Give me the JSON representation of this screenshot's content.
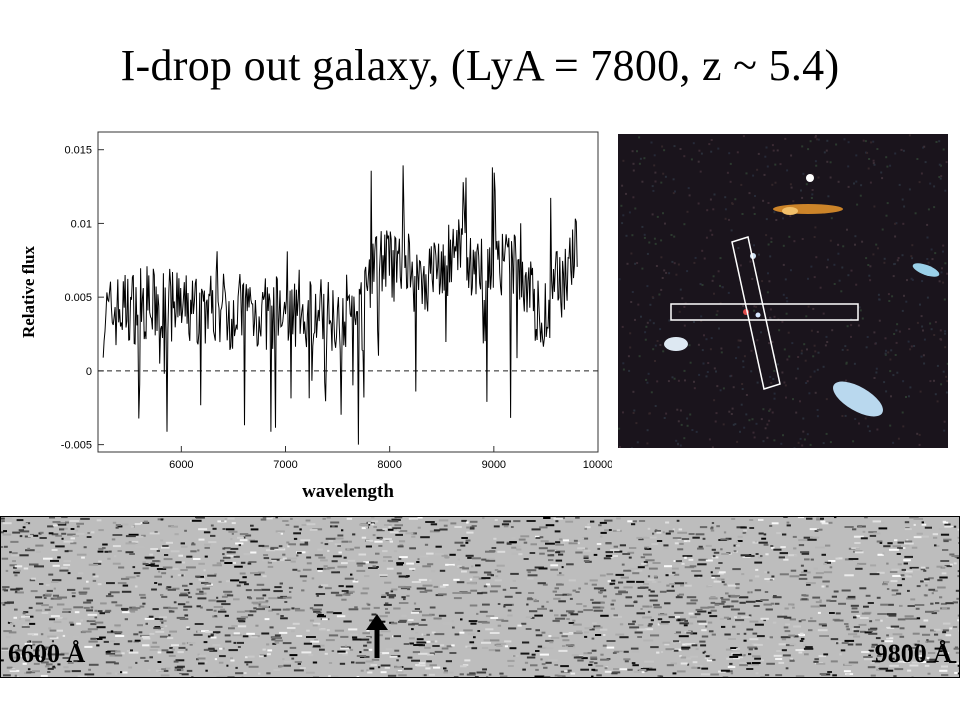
{
  "slide": {
    "title": "I-drop out galaxy, (LyA = 7800, z ~ 5.4)"
  },
  "chart_data": [
    {
      "type": "line",
      "title": "",
      "xlabel": "wavelength",
      "ylabel": "Relative flux",
      "xlim": [
        5200,
        10000
      ],
      "ylim": [
        -0.0055,
        0.0162
      ],
      "x_ticks": [
        "6000",
        "7000",
        "8000",
        "9000",
        "10000"
      ],
      "y_ticks": [
        "-0.005",
        "0",
        "0.005",
        "0.01",
        "0.015"
      ],
      "x_tick_values": [
        6000,
        7000,
        8000,
        9000,
        10000
      ],
      "y_tick_values": [
        -0.005,
        0,
        0.005,
        0.01,
        0.015
      ],
      "zero_line": "dashed",
      "grid": false,
      "series": [
        {
          "x": [
            5250,
            5350,
            5450,
            5550,
            5650,
            5750,
            5850,
            5950,
            6050,
            6150,
            6250,
            6350,
            6450,
            6550,
            6650,
            6750,
            6850,
            6950,
            7050,
            7150,
            7250,
            7350,
            7450,
            7550,
            7650,
            7750,
            7850,
            7950,
            8050,
            8150,
            8250,
            8350,
            8450,
            8550,
            8650,
            8750,
            8850,
            8950,
            9050,
            9150,
            9250,
            9350,
            9450,
            9550,
            9650,
            9750,
            9800
          ],
          "y": [
            0.0035,
            0.004,
            0.0042,
            0.0044,
            0.0046,
            0.0043,
            0.0045,
            0.0041,
            0.004,
            0.0043,
            0.0042,
            0.0044,
            0.004,
            0.0041,
            0.0043,
            0.0039,
            0.0038,
            0.004,
            0.0041,
            0.0043,
            0.004,
            0.0038,
            0.0039,
            0.004,
            0.0042,
            0.0038,
            0.0085,
            0.0075,
            0.0068,
            0.0072,
            0.0065,
            0.0062,
            0.007,
            0.0074,
            0.0078,
            0.0073,
            0.007,
            0.0072,
            0.0068,
            0.007,
            0.0064,
            0.0058,
            0.003,
            0.005,
            0.0062,
            0.0075,
            0.008
          ]
        }
      ]
    }
  ],
  "strip": {
    "left_label": "6600 Å",
    "right_label": "9800 Å"
  }
}
